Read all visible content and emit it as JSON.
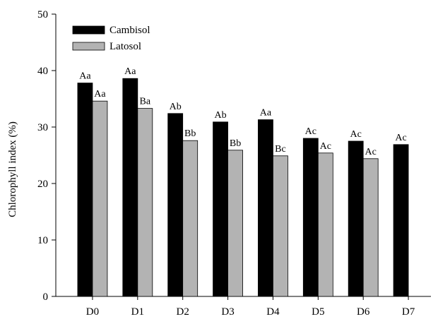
{
  "chart_data": {
    "type": "bar",
    "title": "",
    "xlabel": "",
    "ylabel": "Chlorophyll index (%)",
    "ylim": [
      0,
      50
    ],
    "yticks": [
      0,
      10,
      20,
      30,
      40,
      50
    ],
    "categories": [
      "D0",
      "D1",
      "D2",
      "D3",
      "D4",
      "D5",
      "D6",
      "D7"
    ],
    "series": [
      {
        "name": "Cambisol",
        "color": "#000000",
        "values": [
          37.8,
          38.6,
          32.4,
          30.9,
          31.3,
          28.0,
          27.5,
          26.9
        ],
        "labels": [
          "Aa",
          "Aa",
          "Ab",
          "Ab",
          "Aa",
          "Ac",
          "Ac",
          "Ac"
        ]
      },
      {
        "name": "Latosol",
        "color": "#b3b3b3",
        "values": [
          34.6,
          33.3,
          27.6,
          25.9,
          24.9,
          25.4,
          24.4,
          null
        ],
        "labels": [
          "Aa",
          "Ba",
          "Bb",
          "Bb",
          "Bc",
          "Ac",
          "Ac",
          null
        ]
      }
    ],
    "legend_position": "top-left",
    "grid": false
  }
}
